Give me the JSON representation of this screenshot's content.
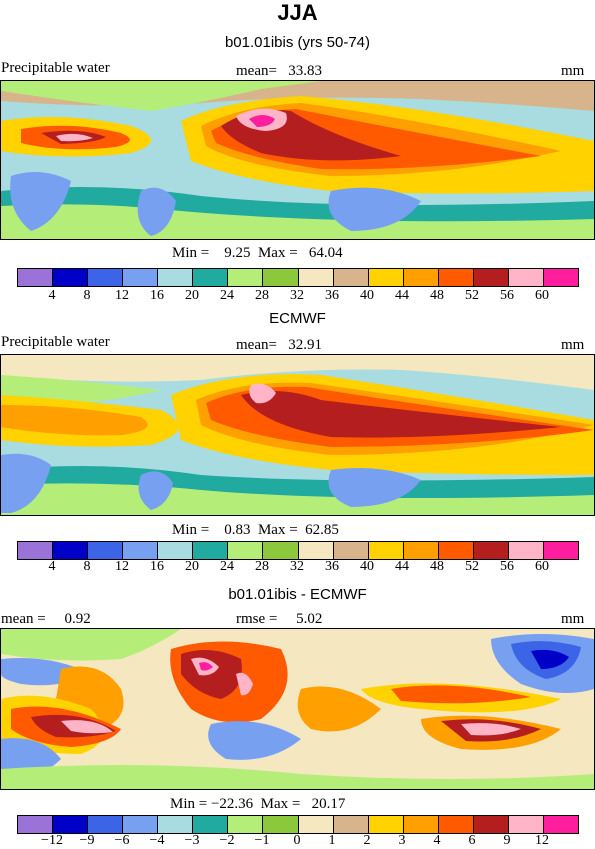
{
  "season_title": "JJA",
  "panels": [
    {
      "key": "model",
      "title": "b01.01ibis (yrs 50-74)",
      "left_label": "Precipitable water",
      "center_label": "mean=   33.83",
      "right_label": "mm",
      "minmax": "Min =    9.25  Max =   64.04",
      "levels": [
        "4",
        "8",
        "12",
        "16",
        "20",
        "24",
        "28",
        "32",
        "36",
        "40",
        "44",
        "48",
        "52",
        "56",
        "60"
      ]
    },
    {
      "key": "obs",
      "title": "ECMWF",
      "left_label": "Precipitable water",
      "center_label": "mean=   32.91",
      "right_label": "mm",
      "minmax": "Min =    0.83  Max =  62.85",
      "levels": [
        "4",
        "8",
        "12",
        "16",
        "20",
        "24",
        "28",
        "32",
        "36",
        "40",
        "44",
        "48",
        "52",
        "56",
        "60"
      ]
    },
    {
      "key": "diff",
      "title": "b01.01ibis - ECMWF",
      "left_label": "mean =     0.92",
      "center_label": "rmse =     5.02",
      "right_label": "mm",
      "minmax": "Min = −22.36  Max =   20.17",
      "levels": [
        "−12",
        "−9",
        "−6",
        "−4",
        "−3",
        "−2",
        "−1",
        "0",
        "1",
        "2",
        "3",
        "4",
        "6",
        "9",
        "12"
      ]
    }
  ],
  "colorbar_colors": [
    "#9a72d8",
    "#0000c8",
    "#3c64e6",
    "#78a0f0",
    "#a8dce0",
    "#20aaa0",
    "#b4ee78",
    "#8cc83c",
    "#f5e8c0",
    "#d8b48c",
    "#ffd200",
    "#ffa000",
    "#ff5a00",
    "#b41e1e",
    "#ffb4c8",
    "#ff1e9e"
  ]
}
